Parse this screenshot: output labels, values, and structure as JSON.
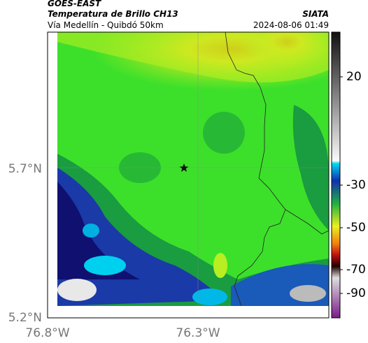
{
  "header": {
    "source": "GOES-EAST",
    "title": "Temperatura de Brillo CH13",
    "brand": "SIATA",
    "subtitle": "Vía Medellín - Quibdó 50km",
    "timestamp": "2024-08-06 01:49"
  },
  "axes": {
    "lat_labels": [
      "5.7°N",
      "5.2°N"
    ],
    "lon_labels": [
      "76.8°W",
      "76.3°W"
    ]
  },
  "colorbar": {
    "ticks": [
      20,
      -30,
      -50,
      -70,
      -90
    ]
  }
}
